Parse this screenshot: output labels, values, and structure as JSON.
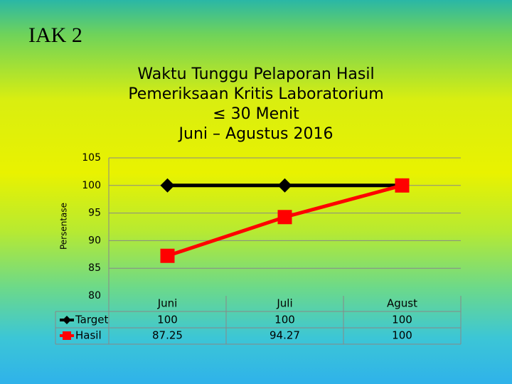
{
  "title": "IAK 2",
  "chart_data": {
    "type": "line",
    "title": [
      "Waktu Tunggu Pelaporan Hasil",
      "Pemeriksaan Kritis Laboratorium",
      "≤ 30 Menit",
      "Juni – Agustus  2016"
    ],
    "y_label": "Persentase",
    "categories": [
      "Juni",
      "Juli",
      "Agust"
    ],
    "series": [
      {
        "name": "Target",
        "color": "#000000",
        "marker": "diamond",
        "values": [
          100,
          100,
          100
        ]
      },
      {
        "name": "Hasil",
        "color": "#ff0000",
        "marker": "square",
        "values": [
          87.25,
          94.27,
          100
        ]
      }
    ],
    "ylim": [
      80,
      105
    ],
    "yticks": [
      80,
      85,
      90,
      95,
      100,
      105
    ],
    "grid": true,
    "data_table": true
  }
}
